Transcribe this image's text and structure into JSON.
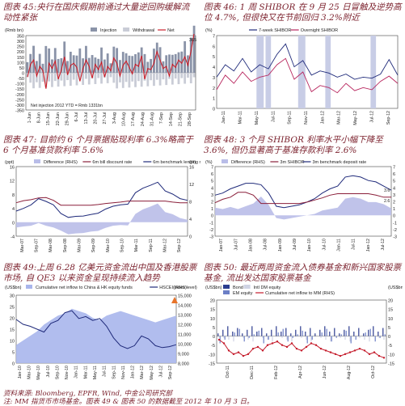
{
  "captions": {
    "c45": "图表 45:央行在国庆假期前通过大量逆回购缓解流动性紧张",
    "c46": "图表 46: 1 周 SHIBOR 在 9 月 25 日冒触及逆势高位 4.7%, 但很快又在节前回归 3.2%附近",
    "c47": "图表 47: 目前约 6 个月票据贴现利率 6.3%略高于 6 个月基准贷款利率 5.6%",
    "c48": "图表 48: 3 个月 SHIBOR 利率水平小幅下降至 3.6%, 但仍显著高于基准存款利率 2.6%",
    "c49": "图表 49:上周 6.28 亿美元资金流出中国及香港股票市场, 自 QE3 以来资金呈现持续流入趋势",
    "c50": "图表 50: 最近两周资金流入债券基金和新兴国家股票基金, 流出发达国家股票基金"
  },
  "source": {
    "line1": "资料来源: Bloomberg, EPFR, Wind, 中金公司研究部",
    "line2": "注: MM 指货币市场基金。图表 49 & 图表 50 的数据截至 2012 年 10 月 3 日。"
  },
  "chart_data": [
    {
      "id": "c45",
      "type": "bar",
      "ylabel": "(Rmb bn)",
      "legend": [
        "Injection",
        "Withdrawal",
        "Net"
      ],
      "ylim": [
        -350,
        350
      ],
      "yticks": [
        "350",
        "300",
        "250",
        "200",
        "150",
        "100",
        "50",
        "0",
        "-50",
        "-100",
        "-150",
        "-200",
        "-250",
        "-300",
        "-350"
      ],
      "xticks": [
        "1-Jun",
        "8-Jun",
        "15-Jun",
        "22-Jun",
        "29-Jun",
        "6-Jul",
        "13-Jul",
        "20-Jul",
        "27-Jul",
        "3-Aug",
        "10-Aug",
        "17-Aug",
        "24-Aug",
        "31-Aug",
        "7-Sep",
        "14-Sep",
        "21-Sep",
        "28-Sep"
      ],
      "annotations": [
        "365",
        "Net injection 2012 YTD = Rmb 1331bn"
      ],
      "colors": {
        "injection": "#8a93a8",
        "withdrawal": "#c9ccd6",
        "net": "#cc1f2a"
      },
      "net": [
        -40,
        80,
        120,
        -30,
        60,
        20,
        -150,
        90,
        40,
        110,
        -60,
        30,
        150,
        -20,
        70,
        90,
        50,
        -80,
        40,
        120,
        60,
        -50,
        80,
        30,
        100,
        -40,
        60,
        20,
        140,
        90,
        -30,
        70,
        110,
        50,
        -10,
        80,
        60,
        160,
        -60,
        40,
        30,
        90,
        200,
        120,
        40,
        60,
        -30,
        80,
        50,
        120,
        90,
        150,
        70,
        200,
        365
      ]
    },
    {
      "id": "c46",
      "type": "line",
      "ylabel": "(%)",
      "ylim": [
        0,
        7
      ],
      "yticks": [
        "7",
        "6",
        "5",
        "4",
        "3",
        "2",
        "1",
        "0"
      ],
      "legend": [
        "7-week SHIBOR",
        "Overnight SHIBOR"
      ],
      "xticks": [
        "Jan-11",
        "Mar-11",
        "May-11",
        "Jul-11",
        "Sep-11",
        "Nov-11",
        "Jan-12",
        "Mar-12",
        "May-12",
        "Jul-12",
        "Sep-12"
      ],
      "series": [
        {
          "name": "7-week SHIBOR",
          "color": "#1f2a7a",
          "values": [
            3.0,
            4.2,
            3.6,
            4.8,
            3.5,
            4.2,
            3.8,
            5.2,
            6.2,
            4.0,
            4.6,
            3.2,
            3.6,
            3.4,
            3.0,
            3.3,
            2.8,
            3.0,
            2.9,
            3.3,
            4.7,
            3.2
          ]
        },
        {
          "name": "Overnight SHIBOR",
          "color": "#b8265e",
          "values": [
            1.8,
            3.2,
            2.4,
            3.5,
            2.6,
            3.0,
            3.2,
            4.2,
            4.8,
            2.8,
            3.5,
            1.6,
            2.2,
            2.0,
            1.5,
            2.4,
            1.7,
            2.0,
            1.8,
            2.6,
            3.1,
            2.4
          ]
        }
      ]
    },
    {
      "id": "c47",
      "type": "line",
      "ylabel_left": "(ppt)",
      "ylabel_right": "(pt)",
      "ylim": [
        -4,
        16
      ],
      "yticks": [
        "16",
        "12",
        "8",
        "4",
        "0",
        "-4"
      ],
      "yticks_right": [
        "16",
        "12",
        "8",
        "4",
        "0"
      ],
      "legend": [
        "Difference (RHS)",
        "6m bill discount rate",
        "6m benchmark lending rate"
      ],
      "xticks": [
        "Mar-07",
        "Sep-07",
        "Mar-08",
        "Sep-08",
        "Mar-09",
        "Sep-09",
        "Mar-10",
        "Sep-10",
        "Mar-11",
        "Sep-11",
        "Mar-12",
        "Sep-12"
      ],
      "series": [
        {
          "name": "6m bill discount rate",
          "color": "#1f2a7a",
          "values": [
            3.2,
            4.0,
            5.0,
            6.8,
            6.0,
            5.0,
            2.5,
            1.4,
            1.7,
            1.8,
            2.2,
            2.6,
            3.8,
            4.6,
            5.0,
            5.2,
            8.5,
            9.8,
            10.6,
            11.5,
            9.0,
            8.1,
            6.8,
            6.3
          ]
        },
        {
          "name": "6m benchmark lending rate",
          "color": "#8a1f3a",
          "values": [
            5.6,
            6.2,
            6.5,
            7.0,
            7.1,
            6.3,
            4.9,
            4.9,
            4.9,
            4.9,
            4.9,
            5.1,
            5.4,
            5.6,
            5.8,
            6.1,
            6.1,
            6.1,
            6.1,
            6.1,
            6.1,
            5.8,
            5.6,
            5.6
          ]
        },
        {
          "name": "Difference (RHS)",
          "color": "#b9bde8",
          "values": [
            -1.5,
            -1.2,
            -1.0,
            -0.2,
            -1.0,
            -1.5,
            -2.4,
            -3.5,
            -3.2,
            -3.1,
            -2.7,
            -2.5,
            -1.6,
            -1.0,
            -0.8,
            -0.9,
            2.4,
            3.7,
            4.5,
            5.4,
            2.9,
            2.3,
            1.2,
            0.7
          ]
        }
      ]
    },
    {
      "id": "c48",
      "type": "line",
      "ylabel": "(%)",
      "ylim": [
        -3,
        7
      ],
      "yticks": [
        "7",
        "6",
        "5",
        "4",
        "3",
        "2",
        "1",
        "0",
        "-1",
        "-2",
        "-3"
      ],
      "legend": [
        "Difference (RHS)",
        "3m SHIBOR",
        "3m benchmark deposit rate"
      ],
      "annotations": [
        "3.6",
        "2.6"
      ],
      "xticks": [
        "Jan-07",
        "Jul-07",
        "Jan-08",
        "Jul-08",
        "Jan-09",
        "Jul-09",
        "Jan-10",
        "Jul-10",
        "Jan-11",
        "Jul-11",
        "Jan-12",
        "Jul-12"
      ],
      "series": [
        {
          "name": "3m SHIBOR",
          "color": "#1f2a7a",
          "values": [
            2.9,
            3.2,
            3.8,
            4.2,
            4.6,
            4.6,
            4.4,
            3.2,
            1.3,
            1.1,
            1.3,
            1.5,
            1.9,
            2.4,
            3.2,
            3.8,
            4.2,
            5.5,
            5.7,
            5.5,
            5.0,
            4.8,
            4.2,
            3.6
          ]
        },
        {
          "name": "3m benchmark deposit rate",
          "color": "#8a1f3a",
          "values": [
            1.8,
            2.3,
            2.6,
            3.3,
            3.3,
            2.9,
            1.7,
            1.7,
            1.7,
            1.7,
            1.7,
            1.7,
            1.9,
            2.2,
            2.5,
            2.9,
            3.1,
            3.1,
            3.1,
            3.1,
            3.1,
            2.9,
            2.6,
            2.6
          ]
        },
        {
          "name": "Difference (RHS)",
          "color": "#b9bde8",
          "values": [
            1.1,
            0.9,
            1.2,
            0.9,
            1.3,
            1.7,
            2.7,
            1.5,
            -0.4,
            -0.6,
            -0.4,
            -0.2,
            0.0,
            0.2,
            0.7,
            0.9,
            1.1,
            2.4,
            2.6,
            2.4,
            1.9,
            1.9,
            1.6,
            1.0
          ]
        }
      ]
    },
    {
      "id": "c49",
      "type": "area",
      "ylabel_left": "(US$bn)",
      "ylabel_right": "(index level)",
      "ylim": [
        0,
        30
      ],
      "yticks": [
        "30",
        "25",
        "20",
        "15",
        "10",
        "5",
        "0"
      ],
      "yticks_right": [
        "15,000",
        "14,000",
        "13,000",
        "12,000",
        "11,000",
        "10,000",
        "9,000",
        "8,000"
      ],
      "legend": [
        "Cumulative net inflow to China & HK equity funds",
        "HSCEI (RHS)"
      ],
      "xticks": [
        "Jan-10",
        "Mar-10",
        "May-10",
        "Jul-10",
        "Sep-10",
        "Nov-10",
        "Jan-11",
        "Mar-11",
        "May-11",
        "Jul-11",
        "Sep-11",
        "Nov-11",
        "Jan-12",
        "Mar-12",
        "May-12",
        "Jul-12",
        "Sep-12"
      ],
      "series": [
        {
          "name": "Cumulative net inflow to China & HK equity funds",
          "color": "#a9b6ec",
          "values": [
            8,
            10,
            12,
            14,
            17,
            19,
            21,
            22,
            24,
            23,
            22,
            20,
            19,
            21,
            22,
            23,
            22,
            21,
            20,
            19,
            18,
            19,
            20,
            21
          ]
        },
        {
          "name": "HSCEI (RHS)",
          "color": "#1f2a7a",
          "values": [
            12500,
            12000,
            11800,
            11500,
            11200,
            12100,
            12400,
            13200,
            13400,
            12600,
            12800,
            12400,
            12600,
            11800,
            10600,
            9800,
            9500,
            9800,
            10800,
            10500,
            9800,
            9600,
            9700,
            9900
          ]
        }
      ]
    },
    {
      "id": "c50",
      "type": "bar",
      "ylabel_left": "(US$bn)",
      "ylabel_right": "(US$bn)",
      "ylim": [
        -15,
        20
      ],
      "yticks": [
        "20",
        "15",
        "10",
        "5",
        "0",
        "-5",
        "-10",
        "-15"
      ],
      "legend": [
        "Bond",
        "Intl DM equity",
        "EM equity",
        "Cumulative net inflow to MM (RHS)"
      ],
      "xticks": [
        "Oct-11",
        "Dec-11",
        "Feb-12",
        "Apr-12",
        "Jun-12",
        "Aug-12",
        "Oct-12"
      ],
      "colors": {
        "bond": "#2b3c8f",
        "dm": "#cfd3e4",
        "em": "#6c7fc6",
        "mm": "#c41a2a"
      },
      "mm_series": [
        -2,
        -4,
        -8,
        -10,
        -9,
        -11,
        -10,
        -7,
        -6,
        -8,
        -5,
        -4,
        -3,
        -5,
        -6,
        -4,
        -7,
        -8,
        -6,
        -4,
        -5,
        -7,
        -8,
        -9,
        -10,
        -11,
        -10,
        -9,
        -8,
        -7,
        -8,
        -10,
        -9,
        -11,
        -12
      ]
    }
  ]
}
